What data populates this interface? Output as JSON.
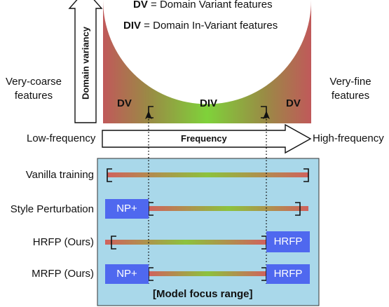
{
  "legend": {
    "dv_abbr": "DV",
    "dv_desc": " = Domain Variant features",
    "div_abbr": "DIV",
    "div_desc": " = Domain In-Variant features"
  },
  "y_axis": {
    "label": "Domain variancy"
  },
  "side_labels": {
    "left_line1": "Very-coarse",
    "left_line2": "features",
    "right_line1": "Very-fine",
    "right_line2": "features"
  },
  "regions": {
    "left": "DV",
    "center": "DIV",
    "right": "DV"
  },
  "x_axis": {
    "low": "Low-frequency",
    "label": "Frequency",
    "high": "High-frequency"
  },
  "rows": [
    {
      "label": "Vanilla training"
    },
    {
      "label": "Style Perturbation",
      "left_tag": "NP+"
    },
    {
      "label": "HRFP (Ours)",
      "right_tag": "HRFP"
    },
    {
      "label": "MRFP (Ours)",
      "left_tag": "NP+",
      "right_tag": "HRFP"
    }
  ],
  "panel_caption": "[Model focus range]",
  "colors": {
    "dv_red": "#c0595a",
    "div_green": "#7fd23a",
    "panel_bg": "#a9d8ea",
    "tag_blue": "#4f68ef"
  }
}
